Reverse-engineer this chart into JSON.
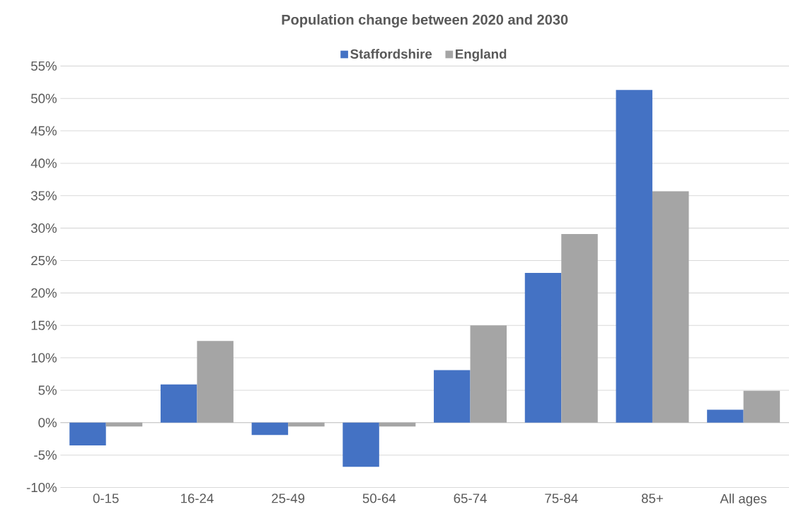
{
  "chart_data": {
    "type": "bar",
    "title": "Population change between 2020 and 2030",
    "categories": [
      "0-15",
      "16-24",
      "25-49",
      "50-64",
      "65-74",
      "75-84",
      "85+",
      "All ages"
    ],
    "series": [
      {
        "name": "Staffordshire",
        "color": "#4472c4",
        "values": [
          -3.5,
          5.9,
          -1.9,
          -6.8,
          8.1,
          23.1,
          51.3,
          2.0
        ]
      },
      {
        "name": "England",
        "color": "#a5a5a5",
        "values": [
          -0.6,
          12.6,
          -0.6,
          -0.6,
          15.0,
          29.1,
          35.7,
          4.9
        ]
      }
    ],
    "ylim": [
      -10,
      55
    ],
    "yticks": [
      {
        "value": -10,
        "label": "-10%"
      },
      {
        "value": -5,
        "label": "-5%"
      },
      {
        "value": 0,
        "label": "0%"
      },
      {
        "value": 5,
        "label": "5%"
      },
      {
        "value": 10,
        "label": "10%"
      },
      {
        "value": 15,
        "label": "15%"
      },
      {
        "value": 20,
        "label": "20%"
      },
      {
        "value": 25,
        "label": "25%"
      },
      {
        "value": 30,
        "label": "30%"
      },
      {
        "value": 35,
        "label": "35%"
      },
      {
        "value": 40,
        "label": "40%"
      },
      {
        "value": 45,
        "label": "45%"
      },
      {
        "value": 50,
        "label": "50%"
      },
      {
        "value": 55,
        "label": "55%"
      }
    ],
    "grid": "y",
    "legend": "top"
  }
}
